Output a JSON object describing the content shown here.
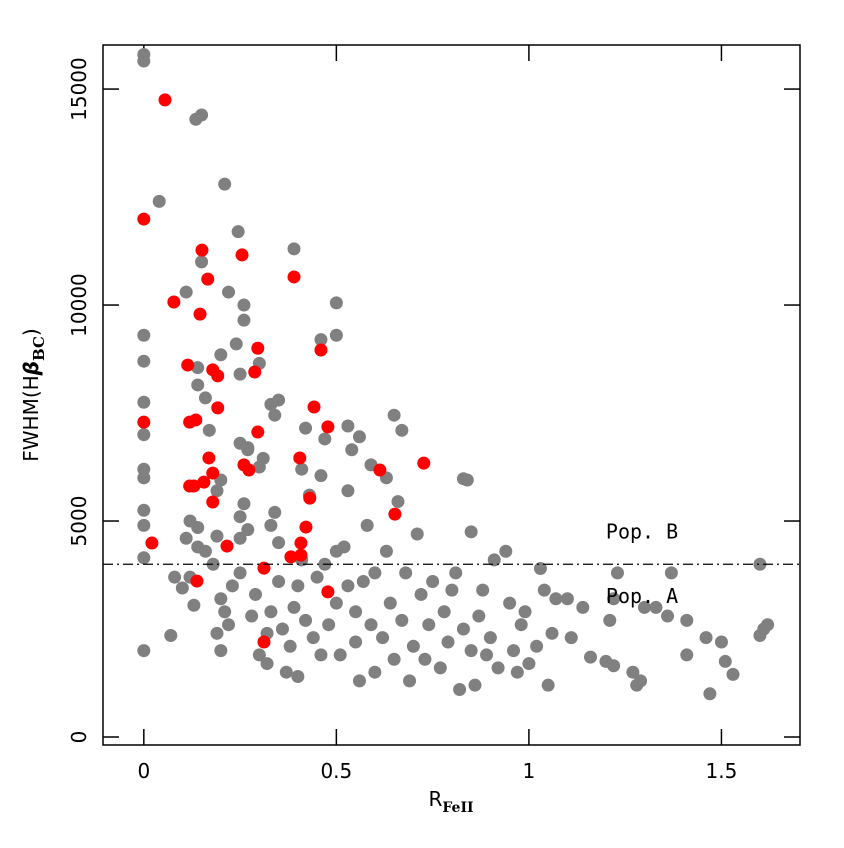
{
  "chart_data": {
    "type": "scatter",
    "xlabel": "R",
    "xlabel_sub": "FeII",
    "ylabel": "FWHM(H",
    "ylabel_greek": "β",
    "ylabel_sub": "BC",
    "ylabel_end": ")",
    "xlim": [
      -0.106,
      1.704
    ],
    "ylim": [
      -185,
      16020
    ],
    "xticks": [
      0,
      0.5,
      1,
      1.5
    ],
    "yticks": [
      0,
      5000,
      10000,
      15000
    ],
    "threshold": 4000,
    "annotations": [
      {
        "text": "Pop. B",
        "x": 1.2,
        "y": 4600
      },
      {
        "text": "Pop. A",
        "x": 1.2,
        "y": 3100
      }
    ],
    "series": [
      {
        "color": "#808080",
        "x": [
          0,
          0,
          0.135,
          0.15,
          0.04,
          0.21,
          0.245,
          0.39,
          0.15,
          0.11,
          0.22,
          0.26,
          0.26,
          0.5,
          0.46,
          0.5,
          0,
          0,
          0.24,
          0.2,
          0.3,
          0.25,
          0.14,
          0.14,
          0.16,
          0,
          0,
          0.33,
          0.35,
          0.34,
          0.42,
          0.17,
          0.25,
          0.27,
          0.47,
          0.53,
          0.56,
          0.65,
          0.67,
          0.54,
          0,
          0,
          0.27,
          0.31,
          0.3,
          0.41,
          0.46,
          0.59,
          0.63,
          0.83,
          0.84,
          0,
          0,
          0,
          0,
          0.08,
          0.07,
          0.1,
          0.12,
          0.13,
          0.11,
          0.12,
          0.14,
          0.14,
          0.16,
          0.18,
          0.19,
          0.19,
          0.2,
          0.2,
          0.19,
          0.21,
          0.2,
          0.22,
          0.23,
          0.25,
          0.25,
          0.25,
          0.26,
          0.27,
          0.28,
          0.29,
          0.3,
          0.32,
          0.32,
          0.33,
          0.33,
          0.34,
          0.35,
          0.35,
          0.36,
          0.37,
          0.38,
          0.39,
          0.4,
          0.4,
          0.41,
          0.42,
          0.43,
          0.44,
          0.45,
          0.46,
          0.47,
          0.48,
          0.5,
          0.5,
          0.51,
          0.52,
          0.53,
          0.53,
          0.55,
          0.55,
          0.56,
          0.57,
          0.58,
          0.59,
          0.6,
          0.6,
          0.62,
          0.63,
          0.64,
          0.65,
          0.66,
          0.67,
          0.68,
          0.69,
          0.7,
          0.71,
          0.72,
          0.73,
          0.74,
          0.75,
          0.77,
          0.78,
          0.79,
          0.8,
          0.81,
          0.82,
          0.83,
          0.85,
          0.85,
          0.86,
          0.87,
          0.88,
          0.89,
          0.9,
          0.91,
          0.92,
          0.94,
          0.95,
          0.96,
          0.97,
          0.98,
          0.99,
          1.0,
          1.02,
          1.03,
          1.04,
          1.05,
          1.06,
          1.07,
          1.1,
          1.11,
          1.14,
          1.16,
          1.2,
          1.21,
          1.22,
          1.23,
          1.27,
          1.28,
          1.29,
          1.3,
          1.33,
          1.37,
          1.36,
          1.41,
          1.41,
          1.46,
          1.47,
          1.5,
          1.51,
          1.53,
          1.6,
          1.6,
          1.61,
          1.62,
          1.22
        ],
        "values": [
          15800,
          15650,
          14300,
          14400,
          12400,
          12800,
          11700,
          11300,
          11000,
          10300,
          10300,
          10000,
          9650,
          10050,
          9200,
          9300,
          9300,
          8700,
          9100,
          8850,
          8650,
          8400,
          8150,
          8550,
          7850,
          7750,
          7000,
          7700,
          7800,
          7450,
          7150,
          7100,
          6800,
          6700,
          6900,
          7200,
          6950,
          7450,
          7100,
          6650,
          6200,
          6000,
          6650,
          6450,
          6250,
          6200,
          6050,
          6300,
          6000,
          5980,
          5950,
          5250,
          4900,
          4150,
          2000,
          3700,
          2350,
          3450,
          3700,
          3050,
          4600,
          5000,
          4850,
          4400,
          4300,
          4000,
          4650,
          5700,
          5950,
          2000,
          2400,
          2900,
          3200,
          2600,
          3500,
          3800,
          4600,
          5100,
          5400,
          4800,
          2800,
          3300,
          1900,
          1700,
          2400,
          2900,
          4900,
          5200,
          4500,
          3600,
          2500,
          1500,
          2100,
          3000,
          1400,
          3500,
          4100,
          2700,
          5600,
          2300,
          3700,
          1900,
          4000,
          2600,
          3100,
          4300,
          1900,
          4400,
          3500,
          5700,
          2900,
          2200,
          1300,
          3600,
          4900,
          2600,
          1500,
          3800,
          2300,
          4300,
          3100,
          1800,
          5450,
          2700,
          3800,
          1300,
          2100,
          4700,
          3300,
          1800,
          2600,
          3600,
          1600,
          2900,
          2200,
          3400,
          3800,
          1100,
          2500,
          2000,
          4750,
          1200,
          2800,
          3400,
          1900,
          2300,
          4100,
          1600,
          4300,
          3100,
          2000,
          1500,
          2600,
          2900,
          1700,
          2100,
          3900,
          3400,
          1200,
          2400,
          3200,
          3200,
          2300,
          3000,
          1850,
          1750,
          2700,
          1650,
          3800,
          1500,
          1200,
          1300,
          3000,
          3000,
          3800,
          2800,
          2700,
          1900,
          2300,
          1000,
          2200,
          1750,
          1450,
          4000,
          2350,
          2500,
          2600,
          3200
        ]
      },
      {
        "color": "#ff0000",
        "x": [
          0.055,
          0,
          0.078,
          0.151,
          0.255,
          0.166,
          0.39,
          0.146,
          0.46,
          0.296,
          0.114,
          0.179,
          0.192,
          0.288,
          0.192,
          0.442,
          0.119,
          0.135,
          0,
          0.296,
          0.478,
          0.727,
          0.26,
          0.273,
          0.613,
          0.169,
          0.405,
          0.119,
          0.13,
          0.156,
          0.179,
          0.179,
          0.431,
          0.421,
          0.652,
          0.021,
          0.216,
          0.408,
          0.408,
          0.382,
          0.312,
          0.138,
          0.478,
          0.312
        ],
        "values": [
          14750,
          11990,
          10070,
          11270,
          11160,
          10600,
          10650,
          9790,
          8960,
          9000,
          8610,
          8500,
          8360,
          8450,
          7620,
          7640,
          7290,
          7340,
          7290,
          7060,
          7180,
          6340,
          6300,
          6180,
          6180,
          6460,
          6460,
          5810,
          5810,
          5900,
          6110,
          5440,
          5530,
          4860,
          5160,
          4490,
          4420,
          4490,
          4210,
          4170,
          3910,
          3610,
          3360,
          2200
        ]
      }
    ]
  }
}
